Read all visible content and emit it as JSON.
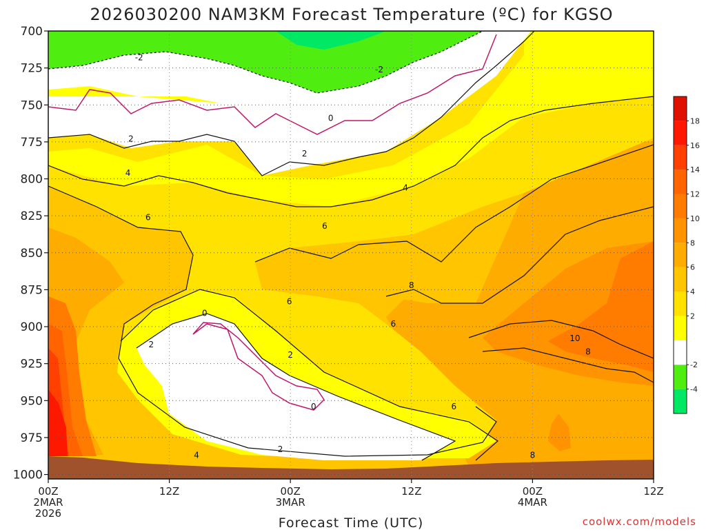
{
  "chart_data": {
    "type": "heatmap",
    "title": "2026030200 NAM3KM Forecast Temperature (ºC) for KGSO",
    "xlabel": "Forecast Time (UTC)",
    "ylabel": "",
    "x_ticks": [
      {
        "hour": 0,
        "lines": [
          "00Z",
          "2MAR",
          "2026"
        ]
      },
      {
        "hour": 12,
        "lines": [
          "12Z"
        ]
      },
      {
        "hour": 24,
        "lines": [
          "00Z",
          "3MAR"
        ]
      },
      {
        "hour": 36,
        "lines": [
          "12Z"
        ]
      },
      {
        "hour": 48,
        "lines": [
          "00Z",
          "4MAR"
        ]
      },
      {
        "hour": 60,
        "lines": [
          "12Z"
        ]
      }
    ],
    "xlim": [
      0,
      60
    ],
    "y_ticks": [
      700,
      725,
      750,
      775,
      800,
      825,
      850,
      875,
      900,
      925,
      950,
      975,
      1000
    ],
    "ylim": [
      700,
      1003
    ],
    "colorbar": {
      "levels": [
        -6,
        -4,
        -2,
        0,
        2,
        4,
        6,
        8,
        10,
        12,
        14,
        16,
        18,
        20
      ],
      "labels": [
        "-4",
        "-2",
        "2",
        "4",
        "6",
        "8",
        "10",
        "12",
        "14",
        "16",
        "18"
      ],
      "label_values": [
        -4,
        -2,
        2,
        4,
        6,
        8,
        10,
        12,
        14,
        16,
        18
      ],
      "colors": [
        "#00e864",
        "#50ee10",
        "#ffffff",
        "#ffff00",
        "#ffe200",
        "#ffc600",
        "#ffac00",
        "#ff9400",
        "#ff7c00",
        "#ff6400",
        "#ff4000",
        "#ff1800",
        "#e01000"
      ]
    },
    "contour_labels": [
      {
        "text": "-2",
        "hour": 9.0,
        "p": 718
      },
      {
        "text": "-2",
        "hour": 32.8,
        "p": 726
      },
      {
        "text": "0",
        "hour": 28.0,
        "p": 759
      },
      {
        "text": "2",
        "hour": 8.2,
        "p": 773
      },
      {
        "text": "2",
        "hour": 25.4,
        "p": 783
      },
      {
        "text": "4",
        "hour": 7.9,
        "p": 796
      },
      {
        "text": "4",
        "hour": 35.4,
        "p": 806
      },
      {
        "text": "6",
        "hour": 9.9,
        "p": 826
      },
      {
        "text": "6",
        "hour": 27.4,
        "p": 832
      },
      {
        "text": "8",
        "hour": 36.0,
        "p": 872
      },
      {
        "text": "6",
        "hour": 23.9,
        "p": 883
      },
      {
        "text": "0",
        "hour": 15.5,
        "p": 891
      },
      {
        "text": "6",
        "hour": 34.2,
        "p": 898
      },
      {
        "text": "2",
        "hour": 10.2,
        "p": 912
      },
      {
        "text": "2",
        "hour": 24.0,
        "p": 919
      },
      {
        "text": "10",
        "hour": 52.2,
        "p": 908
      },
      {
        "text": "8",
        "hour": 53.5,
        "p": 917
      },
      {
        "text": "0",
        "hour": 26.3,
        "p": 954
      },
      {
        "text": "6",
        "hour": 40.2,
        "p": 954
      },
      {
        "text": "2",
        "hour": 23.0,
        "p": 983
      },
      {
        "text": "4",
        "hour": 14.7,
        "p": 987
      },
      {
        "text": "8",
        "hour": 48.0,
        "p": 987
      }
    ]
  },
  "credit": "coolwx.com/models"
}
